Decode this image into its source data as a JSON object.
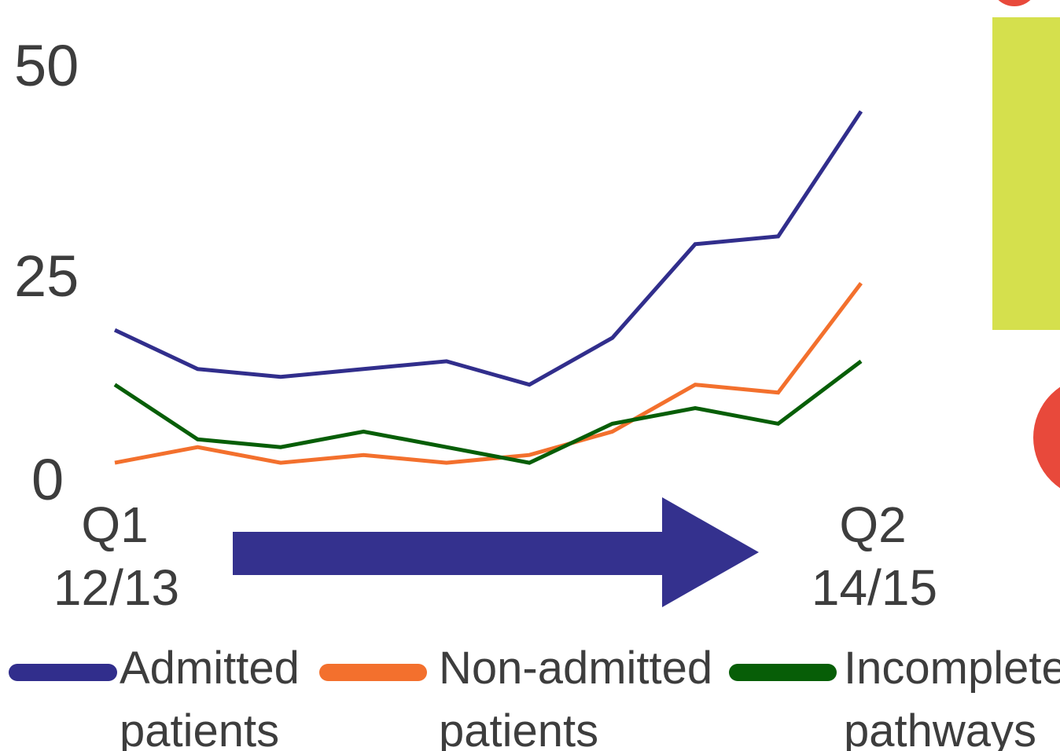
{
  "chart_data": {
    "type": "line",
    "title": "",
    "xlabel": "",
    "ylabel": "",
    "ylim": [
      0,
      50
    ],
    "yticks": [
      "50",
      "25",
      "0"
    ],
    "x_start_label": [
      "Q1",
      "12/13"
    ],
    "x_end_label": [
      "Q2",
      "14/15"
    ],
    "points_per_series": 10,
    "grid": false,
    "legend_position": "bottom",
    "series": [
      {
        "name": [
          "Admitted",
          "patients"
        ],
        "color": "#312e8c",
        "values": [
          19,
          14,
          13,
          14,
          15,
          12,
          18,
          30,
          31,
          47
        ]
      },
      {
        "name": [
          "Non-admitted",
          "patients"
        ],
        "color": "#f3702d",
        "values": [
          2,
          4,
          2,
          3,
          2,
          3,
          6,
          12,
          11,
          25
        ]
      },
      {
        "name": [
          "Incomplete",
          "pathways"
        ],
        "color": "#075e07",
        "values": [
          12,
          5,
          4,
          6,
          4,
          2,
          7,
          9,
          7,
          15
        ]
      }
    ],
    "annotation_arrow_color": "#34318e"
  },
  "decor": {
    "side_panel_color": "#d5e04d",
    "side_dot_color": "#e8493b"
  }
}
